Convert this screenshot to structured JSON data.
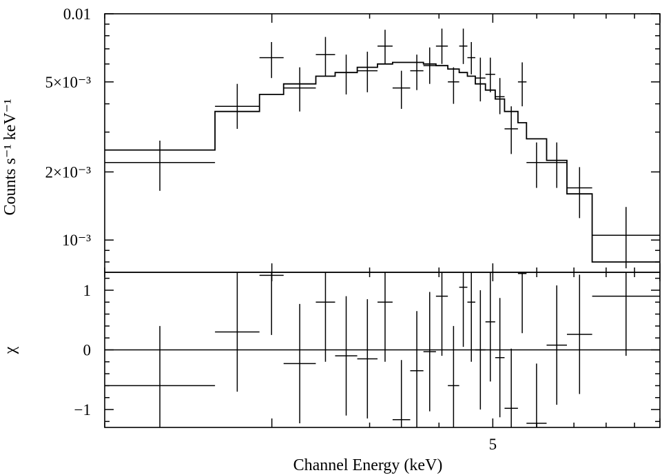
{
  "chart_data": {
    "type": "line",
    "x_axis": {
      "label": "Channel Energy (keV)",
      "scale": "log",
      "range": [
        1.0,
        10.0
      ],
      "tick_labels": [
        {
          "value": 5,
          "text": "5"
        }
      ]
    },
    "spectrum_panel": {
      "y_axis": {
        "label": "Counts s⁻¹ keV⁻¹",
        "scale": "log",
        "range": [
          0.00072,
          0.01
        ],
        "tick_labels": [
          {
            "value": 0.01,
            "text": "0.01"
          },
          {
            "value": 0.005,
            "text": "5×10⁻³"
          },
          {
            "value": 0.002,
            "text": "2×10⁻³"
          },
          {
            "value": 0.001,
            "text": "10⁻³"
          }
        ]
      },
      "data_points": [
        {
          "x_lo": 1.0,
          "x_hi": 1.58,
          "y": 0.0022,
          "y_lo": 0.00165,
          "y_hi": 0.00275
        },
        {
          "x_lo": 1.58,
          "x_hi": 1.9,
          "y": 0.0039,
          "y_lo": 0.0031,
          "y_hi": 0.0049
        },
        {
          "x_lo": 1.9,
          "x_hi": 2.1,
          "y": 0.0064,
          "y_lo": 0.0052,
          "y_hi": 0.0075
        },
        {
          "x_lo": 2.1,
          "x_hi": 2.4,
          "y": 0.0047,
          "y_lo": 0.0037,
          "y_hi": 0.0058
        },
        {
          "x_lo": 2.4,
          "x_hi": 2.6,
          "y": 0.0066,
          "y_lo": 0.0053,
          "y_hi": 0.0079
        },
        {
          "x_lo": 2.6,
          "x_hi": 2.85,
          "y": 0.0055,
          "y_lo": 0.0044,
          "y_hi": 0.0066
        },
        {
          "x_lo": 2.85,
          "x_hi": 3.1,
          "y": 0.0056,
          "y_lo": 0.0045,
          "y_hi": 0.0068
        },
        {
          "x_lo": 3.1,
          "x_hi": 3.3,
          "y": 0.0072,
          "y_lo": 0.006,
          "y_hi": 0.0085
        },
        {
          "x_lo": 3.3,
          "x_hi": 3.55,
          "y": 0.0047,
          "y_lo": 0.0038,
          "y_hi": 0.0056
        },
        {
          "x_lo": 3.55,
          "x_hi": 3.75,
          "y": 0.0056,
          "y_lo": 0.0046,
          "y_hi": 0.0066
        },
        {
          "x_lo": 3.75,
          "x_hi": 3.95,
          "y": 0.0059,
          "y_lo": 0.0049,
          "y_hi": 0.0071
        },
        {
          "x_lo": 3.95,
          "x_hi": 4.15,
          "y": 0.0072,
          "y_lo": 0.006,
          "y_hi": 0.0086
        },
        {
          "x_lo": 4.15,
          "x_hi": 4.35,
          "y": 0.005,
          "y_lo": 0.004,
          "y_hi": 0.0058
        },
        {
          "x_lo": 4.35,
          "x_hi": 4.5,
          "y": 0.0072,
          "y_lo": 0.006,
          "y_hi": 0.0086
        },
        {
          "x_lo": 4.5,
          "x_hi": 4.65,
          "y": 0.0064,
          "y_lo": 0.0054,
          "y_hi": 0.0075
        },
        {
          "x_lo": 4.65,
          "x_hi": 4.85,
          "y": 0.0052,
          "y_lo": 0.0041,
          "y_hi": 0.0064
        },
        {
          "x_lo": 4.85,
          "x_hi": 5.05,
          "y": 0.0054,
          "y_lo": 0.0045,
          "y_hi": 0.0064
        },
        {
          "x_lo": 5.05,
          "x_hi": 5.25,
          "y": 0.0043,
          "y_lo": 0.0036,
          "y_hi": 0.0052
        },
        {
          "x_lo": 5.25,
          "x_hi": 5.55,
          "y": 0.0031,
          "y_lo": 0.0024,
          "y_hi": 0.0039
        },
        {
          "x_lo": 5.55,
          "x_hi": 5.75,
          "y": 0.005,
          "y_lo": 0.0039,
          "y_hi": 0.0061
        },
        {
          "x_lo": 5.75,
          "x_hi": 6.25,
          "y": 0.0022,
          "y_lo": 0.0017,
          "y_hi": 0.0027
        },
        {
          "x_lo": 6.25,
          "x_hi": 6.8,
          "y": 0.0022,
          "y_lo": 0.0017,
          "y_hi": 0.0027
        },
        {
          "x_lo": 6.8,
          "x_hi": 7.55,
          "y": 0.0017,
          "y_lo": 0.00125,
          "y_hi": 0.0021
        },
        {
          "x_lo": 7.55,
          "x_hi": 10.0,
          "y": 0.00105,
          "y_lo": 0.00075,
          "y_hi": 0.0014
        }
      ],
      "model_steps": [
        {
          "x_lo": 1.0,
          "x_hi": 1.58,
          "y": 0.0025
        },
        {
          "x_lo": 1.58,
          "x_hi": 1.9,
          "y": 0.0037
        },
        {
          "x_lo": 1.9,
          "x_hi": 2.1,
          "y": 0.0044
        },
        {
          "x_lo": 2.1,
          "x_hi": 2.4,
          "y": 0.0049
        },
        {
          "x_lo": 2.4,
          "x_hi": 2.6,
          "y": 0.0053
        },
        {
          "x_lo": 2.6,
          "x_hi": 2.85,
          "y": 0.0055
        },
        {
          "x_lo": 2.85,
          "x_hi": 3.1,
          "y": 0.0058
        },
        {
          "x_lo": 3.1,
          "x_hi": 3.3,
          "y": 0.006
        },
        {
          "x_lo": 3.3,
          "x_hi": 3.55,
          "y": 0.0061
        },
        {
          "x_lo": 3.55,
          "x_hi": 3.75,
          "y": 0.0061
        },
        {
          "x_lo": 3.75,
          "x_hi": 3.95,
          "y": 0.006
        },
        {
          "x_lo": 3.95,
          "x_hi": 4.15,
          "y": 0.0059
        },
        {
          "x_lo": 4.15,
          "x_hi": 4.35,
          "y": 0.0057
        },
        {
          "x_lo": 4.35,
          "x_hi": 4.5,
          "y": 0.0055
        },
        {
          "x_lo": 4.5,
          "x_hi": 4.65,
          "y": 0.0053
        },
        {
          "x_lo": 4.65,
          "x_hi": 4.85,
          "y": 0.0049
        },
        {
          "x_lo": 4.85,
          "x_hi": 5.05,
          "y": 0.0046
        },
        {
          "x_lo": 5.05,
          "x_hi": 5.25,
          "y": 0.0042
        },
        {
          "x_lo": 5.25,
          "x_hi": 5.55,
          "y": 0.0037
        },
        {
          "x_lo": 5.55,
          "x_hi": 5.75,
          "y": 0.0033
        },
        {
          "x_lo": 5.75,
          "x_hi": 6.25,
          "y": 0.0028
        },
        {
          "x_lo": 6.25,
          "x_hi": 6.8,
          "y": 0.00225
        },
        {
          "x_lo": 6.8,
          "x_hi": 7.55,
          "y": 0.0016
        },
        {
          "x_lo": 7.55,
          "x_hi": 10.0,
          "y": 0.0008
        }
      ]
    },
    "residual_panel": {
      "y_axis": {
        "label": "χ",
        "scale": "linear",
        "range": [
          -1.3,
          1.3
        ],
        "tick_labels": [
          {
            "value": 1,
            "text": "1"
          },
          {
            "value": 0,
            "text": "0"
          },
          {
            "value": -1,
            "text": "−1"
          }
        ]
      },
      "zero_line": 0,
      "residuals": [
        {
          "x_lo": 1.0,
          "x_hi": 1.58,
          "y": -0.6,
          "y_lo": -1.6,
          "y_hi": 0.4
        },
        {
          "x_lo": 1.58,
          "x_hi": 1.9,
          "y": 0.3,
          "y_lo": -0.7,
          "y_hi": 1.3
        },
        {
          "x_lo": 1.9,
          "x_hi": 2.1,
          "y": 1.25,
          "y_lo": 0.25,
          "y_hi": 2.25
        },
        {
          "x_lo": 2.1,
          "x_hi": 2.4,
          "y": -0.23,
          "y_lo": -1.23,
          "y_hi": 0.77
        },
        {
          "x_lo": 2.4,
          "x_hi": 2.6,
          "y": 0.8,
          "y_lo": -0.2,
          "y_hi": 1.8
        },
        {
          "x_lo": 2.6,
          "x_hi": 2.85,
          "y": -0.1,
          "y_lo": -1.1,
          "y_hi": 0.9
        },
        {
          "x_lo": 2.85,
          "x_hi": 3.1,
          "y": -0.15,
          "y_lo": -1.15,
          "y_hi": 0.85
        },
        {
          "x_lo": 3.1,
          "x_hi": 3.3,
          "y": 0.8,
          "y_lo": -0.2,
          "y_hi": 1.8
        },
        {
          "x_lo": 3.3,
          "x_hi": 3.55,
          "y": -1.17,
          "y_lo": -2.17,
          "y_hi": -0.17
        },
        {
          "x_lo": 3.55,
          "x_hi": 3.75,
          "y": -0.35,
          "y_lo": -1.35,
          "y_hi": 0.65
        },
        {
          "x_lo": 3.75,
          "x_hi": 3.95,
          "y": -0.03,
          "y_lo": -1.03,
          "y_hi": 0.97
        },
        {
          "x_lo": 3.95,
          "x_hi": 4.15,
          "y": 0.9,
          "y_lo": -0.1,
          "y_hi": 1.9
        },
        {
          "x_lo": 4.15,
          "x_hi": 4.35,
          "y": -0.6,
          "y_lo": -1.6,
          "y_hi": 0.4
        },
        {
          "x_lo": 4.35,
          "x_hi": 4.5,
          "y": 1.05,
          "y_lo": 0.05,
          "y_hi": 2.05
        },
        {
          "x_lo": 4.5,
          "x_hi": 4.65,
          "y": 0.8,
          "y_lo": -0.2,
          "y_hi": 1.8
        },
        {
          "x_lo": 4.65,
          "x_hi": 4.85,
          "y": 0.0,
          "y_lo": -1.0,
          "y_hi": 1.0
        },
        {
          "x_lo": 4.85,
          "x_hi": 5.05,
          "y": 0.47,
          "y_lo": -0.53,
          "y_hi": 1.47
        },
        {
          "x_lo": 5.05,
          "x_hi": 5.25,
          "y": -0.13,
          "y_lo": -1.13,
          "y_hi": 0.87
        },
        {
          "x_lo": 5.25,
          "x_hi": 5.55,
          "y": -0.98,
          "y_lo": -1.98,
          "y_hi": 0.02
        },
        {
          "x_lo": 5.55,
          "x_hi": 5.75,
          "y": 1.28,
          "y_lo": 0.28,
          "y_hi": 2.28
        },
        {
          "x_lo": 5.75,
          "x_hi": 6.25,
          "y": -1.23,
          "y_lo": -2.23,
          "y_hi": -0.23
        },
        {
          "x_lo": 6.25,
          "x_hi": 6.8,
          "y": 0.08,
          "y_lo": -0.92,
          "y_hi": 1.08
        },
        {
          "x_lo": 6.8,
          "x_hi": 7.55,
          "y": 0.26,
          "y_lo": -0.74,
          "y_hi": 1.26
        },
        {
          "x_lo": 7.55,
          "x_hi": 10.0,
          "y": 0.9,
          "y_lo": -0.1,
          "y_hi": 1.9
        }
      ]
    }
  }
}
